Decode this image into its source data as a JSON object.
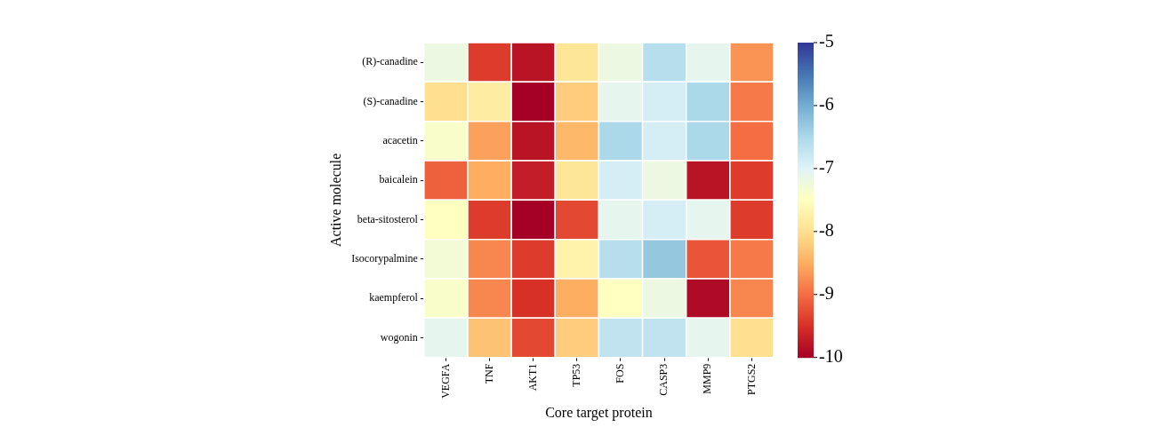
{
  "chart_data": {
    "type": "heatmap",
    "xlabel": "Core target protein",
    "ylabel": "Active molecule",
    "categories": [
      "VEGFA",
      "TNF",
      "AKT1",
      "TP53",
      "FOS",
      "CASP3",
      "MMP9",
      "PTGS2"
    ],
    "y_categories": [
      "(R)-canadine",
      "(S)-canadine",
      "acacetin",
      "baicalein",
      "beta-sitosterol",
      "Isocorypalmine",
      "kaempferol",
      "wogonin"
    ],
    "cells": [
      [
        -7.2,
        -9.4,
        -9.8,
        -7.9,
        -7.2,
        -6.6,
        -7.1,
        -8.7
      ],
      [
        -8.0,
        -7.8,
        -10.0,
        -8.2,
        -7.1,
        -6.9,
        -6.5,
        -8.9
      ],
      [
        -7.4,
        -8.6,
        -9.8,
        -8.4,
        -6.5,
        -6.9,
        -6.5,
        -9.0
      ],
      [
        -9.1,
        -8.5,
        -9.7,
        -7.9,
        -6.9,
        -7.2,
        -9.8,
        -9.4
      ],
      [
        -7.5,
        -9.4,
        -10.0,
        -9.3,
        -7.1,
        -6.9,
        -7.1,
        -9.4
      ],
      [
        -7.3,
        -8.8,
        -9.4,
        -7.7,
        -6.6,
        -6.3,
        -9.2,
        -8.9
      ],
      [
        -7.4,
        -8.8,
        -9.5,
        -8.5,
        -7.5,
        -7.2,
        -9.9,
        -8.8
      ],
      [
        -7.1,
        -8.3,
        -9.3,
        -8.2,
        -6.7,
        -6.7,
        -7.1,
        -8.0
      ]
    ],
    "clim": [
      -10,
      -5
    ],
    "cticks": [
      -10,
      -9,
      -8,
      -7,
      -6,
      -5
    ]
  }
}
